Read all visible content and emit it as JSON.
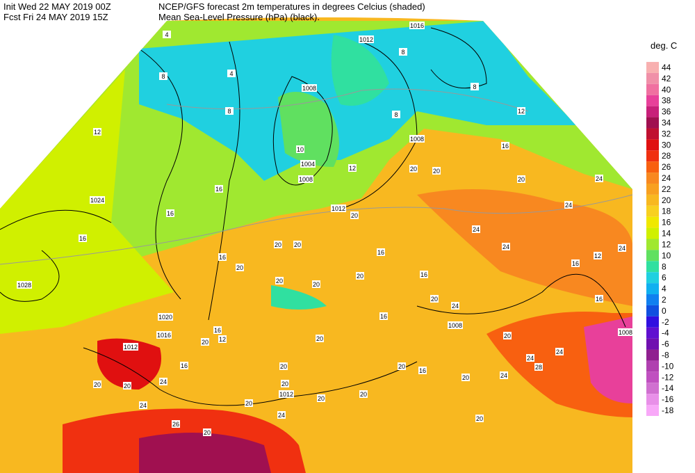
{
  "header": {
    "init": "Init  Wed 22 MAY 2019 00Z",
    "fcst": "Fcst Fri 24 MAY 2019 15Z",
    "title_line1": "NCEP/GFS forecast 2m temperatures in degrees Celcius (shaded)",
    "title_line2": "Mean Sea-Level Pressure (hPa) (black)."
  },
  "legend": {
    "title": "deg. C",
    "ticks": [
      44,
      42,
      40,
      38,
      36,
      34,
      32,
      30,
      28,
      26,
      24,
      22,
      20,
      18,
      16,
      14,
      12,
      10,
      8,
      6,
      4,
      2,
      0,
      -2,
      -4,
      -6,
      -8,
      -10,
      -12,
      -14,
      -16,
      -18
    ],
    "colors": [
      "#f8b0b0",
      "#f090a8",
      "#f070a0",
      "#e8409a",
      "#c8207a",
      "#a01050",
      "#c01030",
      "#e01010",
      "#f03010",
      "#f86010",
      "#f88820",
      "#f8a020",
      "#f8b820",
      "#f8d020",
      "#f0e800",
      "#d0f000",
      "#a0e830",
      "#60e060",
      "#30e0a0",
      "#20d0e0",
      "#10b0f0",
      "#1080f0",
      "#1050e0",
      "#3010e0",
      "#6010d0",
      "#7010b0",
      "#902090",
      "#b040b0",
      "#c050c0",
      "#d070d0",
      "#e890e8",
      "#f8a8f8"
    ]
  },
  "map": {
    "isobar_labels": [
      1016,
      1012,
      1008,
      1008,
      1004,
      1008,
      1012,
      1024,
      1028,
      1020,
      1016,
      1012,
      1012,
      1008,
      1008
    ],
    "isotherm_labels": [
      4,
      8,
      4,
      8,
      12,
      8,
      8,
      12,
      16,
      8,
      10,
      12,
      20,
      20,
      20,
      24,
      24,
      24,
      24,
      24,
      12,
      16,
      16,
      16,
      16,
      20,
      20,
      16,
      20,
      16,
      16,
      20,
      20,
      20,
      20,
      20,
      24,
      16,
      20,
      16,
      20,
      20,
      20,
      24,
      24,
      28,
      16,
      24,
      20,
      20,
      20,
      20,
      20,
      20,
      20,
      16,
      12,
      24,
      20,
      20,
      24,
      26,
      20,
      24,
      16
    ]
  }
}
